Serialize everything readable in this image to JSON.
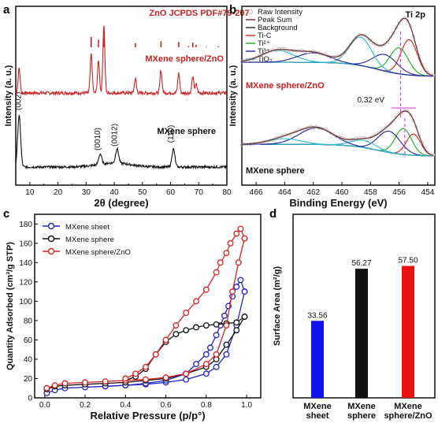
{
  "chart_data": [
    {
      "id": "a",
      "type": "line",
      "panel_label": "a",
      "xlabel": "2θ (degree)",
      "ylabel": "Intensity (a. u.)",
      "xlim": [
        5,
        80
      ],
      "xticks": [
        "10",
        "20",
        "30",
        "40",
        "50",
        "60",
        "70",
        "80"
      ],
      "reference": {
        "name": "ZnO JCPDS PDF#79-207",
        "color": "#cc2222",
        "x": [
          31.8,
          34.4,
          36.3,
          47.5,
          56.6,
          62.9,
          66.4,
          67.9,
          69.1,
          72.6,
          77.0
        ],
        "values": [
          0.55,
          0.4,
          1.0,
          0.22,
          0.32,
          0.28,
          0.06,
          0.25,
          0.12,
          0.03,
          0.05
        ]
      },
      "series": [
        {
          "name": "MXene sphere/ZnO",
          "color": "#cc2222",
          "peaks": [
            {
              "x": 6.2,
              "height": 0.35
            },
            {
              "x": 31.8,
              "height": 0.55
            },
            {
              "x": 34.4,
              "height": 0.45
            },
            {
              "x": 36.3,
              "height": 0.95
            },
            {
              "x": 47.5,
              "height": 0.2
            },
            {
              "x": 56.6,
              "height": 0.32
            },
            {
              "x": 62.9,
              "height": 0.28
            },
            {
              "x": 67.9,
              "height": 0.22
            },
            {
              "x": 69.1,
              "height": 0.12
            }
          ]
        },
        {
          "name": "MXene sphere",
          "color": "#111111",
          "peaks": [
            {
              "x": 6.2,
              "height": 1.0,
              "label": "(002)"
            },
            {
              "x": 35.0,
              "height": 0.2,
              "label": "(0010)"
            },
            {
              "x": 41.0,
              "height": 0.28,
              "label": "(0012)"
            },
            {
              "x": 61.0,
              "height": 0.35,
              "label": "(110)"
            }
          ]
        }
      ]
    },
    {
      "id": "b",
      "type": "line",
      "panel_label": "b",
      "xlabel": "Binding Energy (eV)",
      "ylabel": "Intensity (a. u.)",
      "xlim": [
        467,
        453.5
      ],
      "xticks": [
        "466",
        "464",
        "462",
        "460",
        "458",
        "456",
        "454"
      ],
      "title": "Ti 2p",
      "legend": [
        {
          "label": "Raw Intensity",
          "color": "#bbbbbb",
          "marker": "circle"
        },
        {
          "label": "Peak Sum",
          "color": "#6a2a2a"
        },
        {
          "label": "Background",
          "color": "#222222"
        },
        {
          "label": "Ti-C",
          "color": "#dd2222"
        },
        {
          "label": "Ti²⁺",
          "color": "#22aa22"
        },
        {
          "label": "Ti³⁺",
          "color": "#2222aa"
        },
        {
          "label": "TiO₂",
          "color": "#22bbcc"
        }
      ],
      "annotation": "0.32 eV",
      "series_labels": [
        "MXene sphere/ZnO",
        "MXene sphere"
      ],
      "components": {
        "MXene sphere/ZnO": [
          {
            "name": "Ti-C",
            "center": 455.3,
            "height": 0.75,
            "width": 0.8
          },
          {
            "name": "Ti²⁺",
            "center": 456.0,
            "height": 0.55,
            "width": 0.9
          },
          {
            "name": "Ti³⁺",
            "center": 457.0,
            "height": 0.35,
            "width": 1.2
          },
          {
            "name": "TiO₂",
            "center": 458.7,
            "height": 0.6,
            "width": 1.1
          },
          {
            "name": "TiO₂",
            "center": 464.5,
            "height": 0.25,
            "width": 1.6
          },
          {
            "name": "Ti³⁺",
            "center": 462.0,
            "height": 0.2,
            "width": 1.6
          }
        ],
        "MXene sphere": [
          {
            "name": "Ti-C",
            "center": 455.0,
            "height": 0.45,
            "width": 0.7
          },
          {
            "name": "Ti²⁺",
            "center": 455.7,
            "height": 0.55,
            "width": 0.8
          },
          {
            "name": "Ti³⁺",
            "center": 456.7,
            "height": 0.45,
            "width": 1.1
          },
          {
            "name": "TiO₂",
            "center": 458.5,
            "height": 0.15,
            "width": 1.2
          },
          {
            "name": "Ti³⁺",
            "center": 461.8,
            "height": 0.35,
            "width": 1.7
          },
          {
            "name": "TiO₂",
            "center": 464.0,
            "height": 0.12,
            "width": 1.6
          }
        ]
      }
    },
    {
      "id": "c",
      "type": "line",
      "panel_label": "c",
      "xlabel": "Relative Pressure (p/p°)",
      "ylabel": "Quantity Adsorbed (cm³/g STP)",
      "xlim": [
        -0.05,
        1.07
      ],
      "ylim": [
        0,
        190
      ],
      "xticks": [
        "0.0",
        "0.2",
        "0.4",
        "0.6",
        "0.8",
        "1.0"
      ],
      "yticks": [
        "0",
        "20",
        "40",
        "60",
        "80",
        "100",
        "120",
        "140",
        "160",
        "180"
      ],
      "series": [
        {
          "name": "MXene sheet",
          "color": "#2222cc",
          "adsorption": {
            "x": [
              0.01,
              0.05,
              0.1,
              0.2,
              0.3,
              0.4,
              0.5,
              0.6,
              0.7,
              0.8,
              0.85,
              0.9,
              0.95,
              0.99
            ],
            "y": [
              5,
              8,
              10,
              11,
              12,
              13,
              14,
              16,
              19,
              25,
              32,
              45,
              75,
              110
            ]
          },
          "desorption": {
            "x": [
              0.99,
              0.97,
              0.95,
              0.93,
              0.91,
              0.89,
              0.87,
              0.85,
              0.82,
              0.8,
              0.75,
              0.7,
              0.6,
              0.5,
              0.4,
              0.3
            ],
            "y": [
              110,
              122,
              115,
              105,
              95,
              85,
              75,
              65,
              52,
              45,
              35,
              25,
              18,
              15,
              13,
              12
            ]
          }
        },
        {
          "name": "MXene sphere",
          "color": "#111111",
          "adsorption": {
            "x": [
              0.01,
              0.05,
              0.1,
              0.2,
              0.3,
              0.4,
              0.5,
              0.6,
              0.7,
              0.8,
              0.85,
              0.9,
              0.95,
              0.99
            ],
            "y": [
              9,
              12,
              13,
              14,
              15,
              16,
              18,
              20,
              25,
              32,
              40,
              55,
              70,
              84
            ]
          },
          "desorption": {
            "x": [
              0.99,
              0.95,
              0.9,
              0.85,
              0.8,
              0.75,
              0.7,
              0.65,
              0.6,
              0.55,
              0.5,
              0.45,
              0.4
            ],
            "y": [
              84,
              78,
              77,
              76,
              75,
              73,
              70,
              66,
              58,
              45,
              30,
              22,
              18
            ]
          }
        },
        {
          "name": "MXene sphere/ZnO",
          "color": "#dd2222",
          "adsorption": {
            "x": [
              0.01,
              0.05,
              0.1,
              0.2,
              0.3,
              0.4,
              0.5,
              0.6,
              0.7,
              0.8,
              0.85,
              0.9,
              0.93,
              0.96,
              0.99
            ],
            "y": [
              10,
              13,
              15,
              16,
              17,
              18,
              19,
              21,
              25,
              35,
              45,
              75,
              110,
              140,
              165
            ]
          },
          "desorption": {
            "x": [
              0.99,
              0.97,
              0.95,
              0.92,
              0.9,
              0.87,
              0.85,
              0.8,
              0.75,
              0.7,
              0.65,
              0.6,
              0.55,
              0.5,
              0.45,
              0.4
            ],
            "y": [
              165,
              175,
              170,
              160,
              150,
              140,
              130,
              112,
              100,
              88,
              75,
              60,
              45,
              32,
              25,
              20
            ]
          }
        }
      ]
    },
    {
      "id": "d",
      "type": "bar",
      "panel_label": "d",
      "ylabel": "Surface Area (m²/g)",
      "ylim": [
        0,
        80
      ],
      "categories": [
        {
          "line1": "MXene",
          "line2": "sheet"
        },
        {
          "line1": "MXene",
          "line2": "sphere"
        },
        {
          "line1": "MXene",
          "line2": "sphere/ZnO"
        }
      ],
      "values": [
        33.56,
        56.27,
        57.5
      ],
      "value_labels": [
        "33.56",
        "56.27",
        "57.50"
      ],
      "colors": [
        "#1111ee",
        "#111111",
        "#ee1111"
      ]
    }
  ]
}
